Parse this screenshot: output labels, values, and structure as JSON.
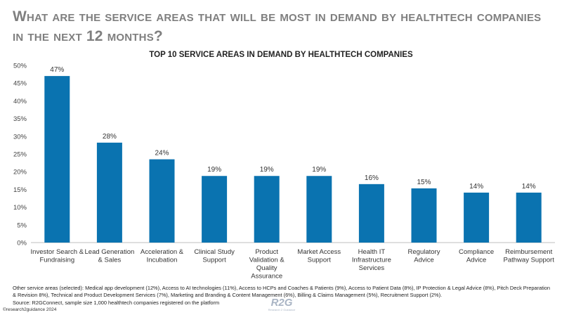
{
  "page_title": "What are the service areas that will be most in demand by healthtech companies in the next 12 months?",
  "footnote": "Other service areas (selected): Medical app development (12%), Access to AI technologies (11%), Access to HCPs and Coaches & Patients (9%), Access to Patient Data (8%), IP Protection & Legal Advice (8%), Pitch Deck Preparation & Revision 8%), Technical and Product Development Services (7%), Marketing and Branding & Content Management (6%), Billing & Claims Management (5%), Recruitment Support (2%).",
  "source": "Source: R2GConnect, sample size 1,000 healthtech companies registered on the platform",
  "copyright": "©research2guidance 2024",
  "logo": {
    "mark": "R2G",
    "tagline": "Research 2 Guidance"
  },
  "colors": {
    "bar": "#0a73b0",
    "title": "#7f7f7f"
  },
  "chart_data": {
    "type": "bar",
    "title": "TOP 10 SERVICE AREAS IN DEMAND BY HEALTHTECH COMPANIES",
    "xlabel": "",
    "ylabel": "",
    "ylim": [
      0,
      50
    ],
    "yticks": [
      "0%",
      "5%",
      "10%",
      "15%",
      "20%",
      "25%",
      "30%",
      "35%",
      "40%",
      "45%",
      "50%"
    ],
    "grid": false,
    "categories": [
      [
        "Investor Search &",
        "Fundraising"
      ],
      [
        "Lead Generation",
        "& Sales"
      ],
      [
        "Acceleration &",
        "Incubation"
      ],
      [
        "Clinical Study",
        "Support"
      ],
      [
        "Product",
        "Validation &",
        "Quality",
        "Assurance"
      ],
      [
        "Market Access",
        "Support"
      ],
      [
        "Health IT",
        "Infrastructure",
        "Services"
      ],
      [
        "Regulatory",
        "Advice"
      ],
      [
        "Compliance",
        "Advice"
      ],
      [
        "Reimbursement",
        "Pathway Support"
      ]
    ],
    "values": [
      47,
      28,
      24,
      19,
      19,
      19,
      16,
      15,
      14,
      14
    ],
    "plot_values": [
      47,
      28.2,
      23.5,
      18.8,
      18.8,
      18.8,
      16.5,
      15.3,
      14.1,
      14.1
    ],
    "data_labels": [
      "47%",
      "28%",
      "24%",
      "19%",
      "19%",
      "19%",
      "16%",
      "15%",
      "14%",
      "14%"
    ]
  }
}
